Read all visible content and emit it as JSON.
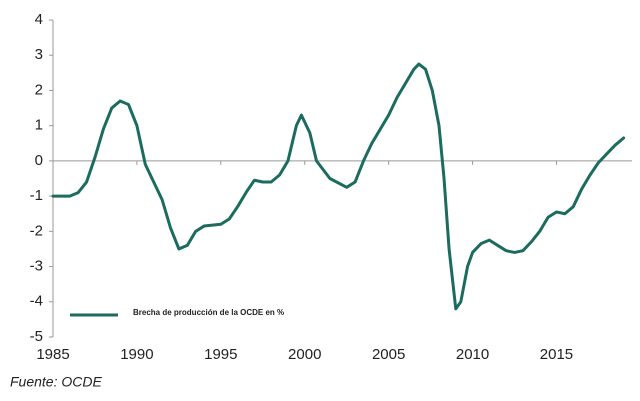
{
  "chart_data": {
    "type": "line",
    "x": [
      1985,
      1986,
      1986.5,
      1987,
      1987.5,
      1988,
      1988.5,
      1989,
      1989.5,
      1990,
      1990.5,
      1991,
      1991.5,
      1992,
      1992.5,
      1993,
      1993.5,
      1994,
      1995,
      1995.5,
      1996,
      1996.5,
      1997,
      1997.5,
      1998,
      1998.5,
      1999,
      1999.5,
      1999.8,
      2000.3,
      2000.7,
      2001.5,
      2002.5,
      2003,
      2003.5,
      2004,
      2004.5,
      2005,
      2005.5,
      2006,
      2006.5,
      2006.8,
      2007.2,
      2007.6,
      2008,
      2008.3,
      2008.6,
      2009,
      2009.3,
      2009.7,
      2010,
      2010.5,
      2011,
      2011.5,
      2012,
      2012.5,
      2013,
      2013.5,
      2014,
      2014.5,
      2015,
      2015.5,
      2016,
      2016.5,
      2017,
      2017.5,
      2018,
      2018.5,
      2019
    ],
    "series": [
      {
        "name": "Brecha de producción de la OCDE en %",
        "color": "#1b6b5f",
        "values": [
          -1.0,
          -1.0,
          -0.9,
          -0.6,
          0.1,
          0.9,
          1.5,
          1.7,
          1.6,
          1.0,
          -0.1,
          -0.6,
          -1.1,
          -1.9,
          -2.5,
          -2.4,
          -2.0,
          -1.85,
          -1.8,
          -1.65,
          -1.3,
          -0.9,
          -0.55,
          -0.6,
          -0.6,
          -0.4,
          0.0,
          1.0,
          1.3,
          0.8,
          0.0,
          -0.5,
          -0.75,
          -0.6,
          0.0,
          0.5,
          0.9,
          1.3,
          1.8,
          2.2,
          2.6,
          2.75,
          2.6,
          2.0,
          1.0,
          -0.5,
          -2.5,
          -4.2,
          -4.0,
          -3.0,
          -2.6,
          -2.35,
          -2.25,
          -2.4,
          -2.55,
          -2.6,
          -2.55,
          -2.3,
          -2.0,
          -1.6,
          -1.45,
          -1.5,
          -1.3,
          -0.8,
          -0.4,
          -0.05,
          0.2,
          0.45,
          0.65
        ]
      }
    ],
    "xlim": [
      1985,
      2019.5
    ],
    "xticks": [
      1985,
      1990,
      1995,
      2000,
      2005,
      2010,
      2015
    ],
    "ylim": [
      -5,
      4
    ],
    "yticks": [
      -5,
      -4,
      -3,
      -2,
      -1,
      0,
      1,
      2,
      3,
      4
    ],
    "source": "Fuente: OCDE"
  }
}
